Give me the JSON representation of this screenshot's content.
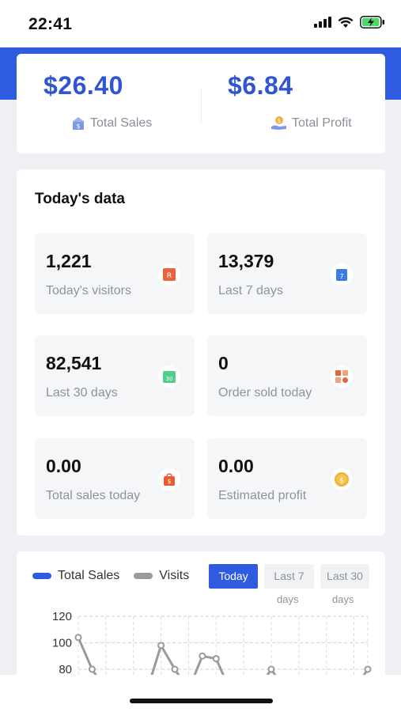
{
  "status_bar": {
    "time": "22:41"
  },
  "summary": {
    "total_sales": {
      "value": "$26.40",
      "label": "Total Sales",
      "icon": "store-dollar-icon"
    },
    "total_profit": {
      "value": "$6.84",
      "label": "Total Profit",
      "icon": "hand-coin-icon"
    }
  },
  "today": {
    "title": "Today's data",
    "stats": [
      {
        "value": "1,221",
        "label": "Today's visitors",
        "icon": "visitors-icon",
        "color": "#e8643a"
      },
      {
        "value": "13,379",
        "label": "Last 7 days",
        "icon": "calendar-7-icon",
        "color": "#3d7be8"
      },
      {
        "value": "82,541",
        "label": "Last 30 days",
        "icon": "calendar-30-icon",
        "color": "#4fcf8a"
      },
      {
        "value": "0",
        "label": "Order sold today",
        "icon": "orders-grid-icon",
        "color": "#e8643a"
      },
      {
        "value": "0.00",
        "label": "Total sales today",
        "icon": "shopping-bag-icon",
        "color": "#ee5a2f"
      },
      {
        "value": "0.00",
        "label": "Estimated profit",
        "icon": "coin-icon",
        "color": "#f2b233"
      }
    ]
  },
  "chart": {
    "legend": [
      {
        "name": "Total Sales",
        "color": "#2f5be0"
      },
      {
        "name": "Visits",
        "color": "#9a9a9a"
      }
    ],
    "ranges": [
      {
        "label": "Today",
        "sub": "",
        "active": true
      },
      {
        "label": "Last 7",
        "sub": "days",
        "active": false
      },
      {
        "label": "Last 30",
        "sub": "days",
        "active": false
      }
    ]
  },
  "chart_data": {
    "type": "line",
    "title": "",
    "xlabel": "",
    "ylabel": "",
    "yticks": [
      "120",
      "100",
      "80"
    ],
    "ylim": [
      80,
      120
    ],
    "grid": true,
    "series": [
      {
        "name": "Visits",
        "values": [
          104,
          80,
          null,
          null,
          null,
          null,
          98,
          80,
          null,
          90,
          88,
          null,
          null,
          null,
          80,
          null,
          null,
          null,
          null,
          null,
          null,
          80
        ]
      }
    ]
  }
}
